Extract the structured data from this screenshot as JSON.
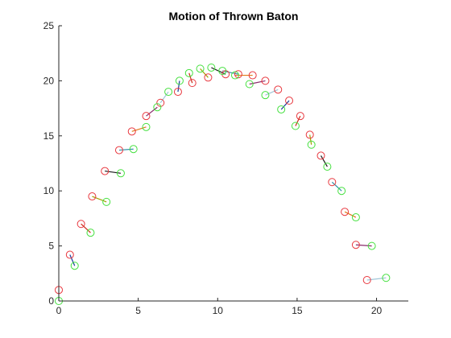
{
  "chart_data": {
    "type": "scatter",
    "title": "Motion of Thrown Baton",
    "xlabel": "",
    "ylabel": "",
    "xlim": [
      0,
      22
    ],
    "ylim": [
      0,
      25
    ],
    "xticks": [
      0,
      5,
      10,
      15,
      20
    ],
    "yticks": [
      0,
      5,
      10,
      15,
      20,
      25
    ],
    "grid": false,
    "colors": {
      "red_marker": "#e8383f",
      "green_marker": "#45e03f",
      "link_colors": [
        "#a0c6d8",
        "#1a3a9a",
        "#cc2a18",
        "#a0a000",
        "#1a1a1a",
        "#2f8fa8",
        "#e07a1a",
        "#8a2a6a"
      ]
    },
    "series": [
      {
        "name": "",
        "marker": "circle-open",
        "color": "#e8383f",
        "x": [
          0.0,
          0.7,
          1.4,
          2.1,
          2.9,
          3.8,
          4.6,
          5.5,
          6.4,
          7.5,
          8.4,
          9.4,
          10.5,
          11.3,
          12.2,
          13.0,
          13.8,
          14.5,
          15.2,
          15.8,
          16.5,
          17.2,
          18.0,
          18.7,
          19.4
        ],
        "y": [
          1.0,
          4.2,
          7.0,
          9.5,
          11.8,
          13.7,
          15.4,
          16.8,
          18.0,
          19.0,
          19.8,
          20.3,
          20.6,
          20.6,
          20.5,
          20.0,
          19.2,
          18.2,
          16.8,
          15.1,
          13.2,
          10.8,
          8.1,
          5.1,
          1.9
        ]
      },
      {
        "name": "",
        "marker": "circle-open",
        "color": "#45e03f",
        "x": [
          0.0,
          1.0,
          2.0,
          3.0,
          3.9,
          4.7,
          5.5,
          6.2,
          6.9,
          7.6,
          8.2,
          8.9,
          9.6,
          10.3,
          11.1,
          12.0,
          13.0,
          14.0,
          14.9,
          15.9,
          16.9,
          17.8,
          18.7,
          19.7,
          20.6
        ],
        "y": [
          0.0,
          3.2,
          6.2,
          9.0,
          11.6,
          13.8,
          15.8,
          17.6,
          19.0,
          20.0,
          20.7,
          21.1,
          21.2,
          20.9,
          20.5,
          19.7,
          18.7,
          17.4,
          15.9,
          14.2,
          12.2,
          10.0,
          7.6,
          5.0,
          2.1
        ]
      }
    ],
    "links": "segment joins red point i to green point i"
  }
}
